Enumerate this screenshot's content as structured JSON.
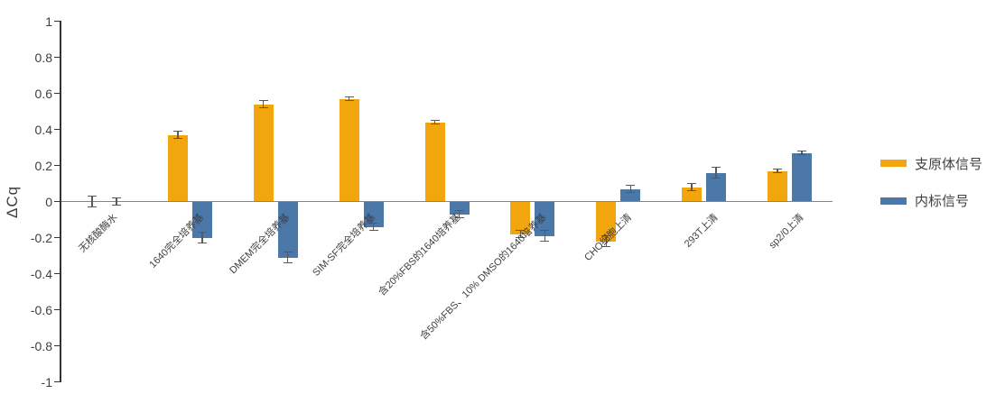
{
  "chart_data": {
    "type": "bar",
    "title": "",
    "ylabel": "ΔCq",
    "xlabel": "",
    "ylim": [
      -1,
      1
    ],
    "ytick_step": 0.2,
    "yticks": [
      "1",
      "0.8",
      "0.6",
      "0.4",
      "0.2",
      "0",
      "-0.2",
      "-0.4",
      "-0.6",
      "-0.8",
      "-1"
    ],
    "grid": false,
    "legend_position": "right",
    "categories": [
      "无核酸酶水",
      "1640完全培养基",
      "DMEM完全培养基",
      "SIM-SF完全培养基",
      "含20%FBS的1640培养基",
      "含50%FBS、10% DMSO的1640培养基",
      "CHO细胞上清",
      "293T上清",
      "sp2/0上清"
    ],
    "series": [
      {
        "name": "支原体信号",
        "color": "#F2A60E",
        "values": [
          0.0,
          0.37,
          0.54,
          0.57,
          0.44,
          -0.18,
          -0.22,
          0.08,
          0.17
        ],
        "errors": [
          0.03,
          0.02,
          0.02,
          0.01,
          0.01,
          0.02,
          0.03,
          0.02,
          0.01
        ]
      },
      {
        "name": "内标信号",
        "color": "#4C77A9",
        "values": [
          0.0,
          -0.2,
          -0.31,
          -0.14,
          -0.07,
          -0.19,
          0.07,
          0.16,
          0.27
        ],
        "errors": [
          0.02,
          0.03,
          0.03,
          0.02,
          0.02,
          0.03,
          0.02,
          0.03,
          0.01
        ]
      }
    ]
  },
  "colors": {
    "mycoplasma_series": "#F2A60E",
    "internal_series": "#4C77A9",
    "error_bar": "#595959",
    "axis_spine": "#333333",
    "zero_line": "#848484",
    "text": "#404040",
    "background": "#ffffff"
  }
}
